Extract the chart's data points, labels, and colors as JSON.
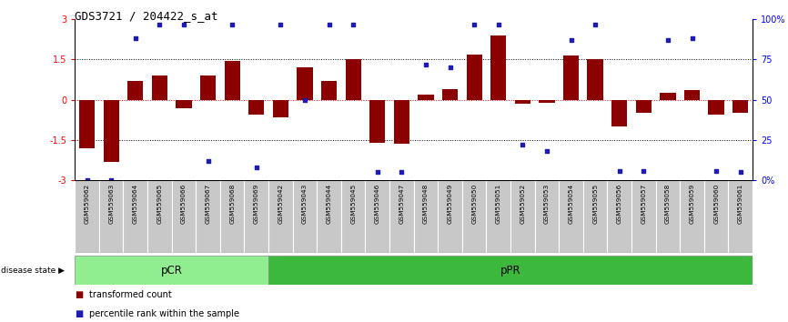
{
  "title": "GDS3721 / 204422_s_at",
  "samples": [
    "GSM559062",
    "GSM559063",
    "GSM559064",
    "GSM559065",
    "GSM559066",
    "GSM559067",
    "GSM559068",
    "GSM559069",
    "GSM559042",
    "GSM559043",
    "GSM559044",
    "GSM559045",
    "GSM559046",
    "GSM559047",
    "GSM559048",
    "GSM559049",
    "GSM559050",
    "GSM559051",
    "GSM559052",
    "GSM559053",
    "GSM559054",
    "GSM559055",
    "GSM559056",
    "GSM559057",
    "GSM559058",
    "GSM559059",
    "GSM559060",
    "GSM559061"
  ],
  "bar_values": [
    -1.8,
    -2.3,
    0.7,
    0.9,
    -0.3,
    0.9,
    1.45,
    -0.55,
    -0.65,
    1.2,
    0.7,
    1.5,
    -1.6,
    -1.65,
    0.2,
    0.4,
    1.7,
    2.4,
    -0.15,
    -0.1,
    1.65,
    1.5,
    -1.0,
    -0.5,
    0.25,
    0.35,
    -0.55,
    -0.5
  ],
  "dot_values": [
    0,
    0,
    88,
    97,
    97,
    12,
    97,
    8,
    97,
    50,
    97,
    97,
    5,
    5,
    72,
    70,
    97,
    97,
    22,
    18,
    87,
    97,
    6,
    6,
    87,
    88,
    6,
    5
  ],
  "pCR_count": 8,
  "pPR_count": 20,
  "bar_color": "#8B0000",
  "dot_color": "#1C1CB4",
  "ylim": [
    -3,
    3
  ],
  "yticks_left": [
    -3,
    -1.5,
    0,
    1.5,
    3
  ],
  "ytick_labels_left": [
    "-3",
    "-1.5",
    "0",
    "1.5",
    "3"
  ],
  "yticks_right": [
    0,
    25,
    50,
    75,
    100
  ],
  "ytick_labels_right": [
    "0%",
    "25",
    "50",
    "75",
    "100%"
  ],
  "pCR_color": "#90EE90",
  "pPR_color": "#3CB93C",
  "label_row_color": "#C8C8C8",
  "legend_bar_label": "transformed count",
  "legend_dot_label": "percentile rank within the sample",
  "disease_state_label": "disease state"
}
